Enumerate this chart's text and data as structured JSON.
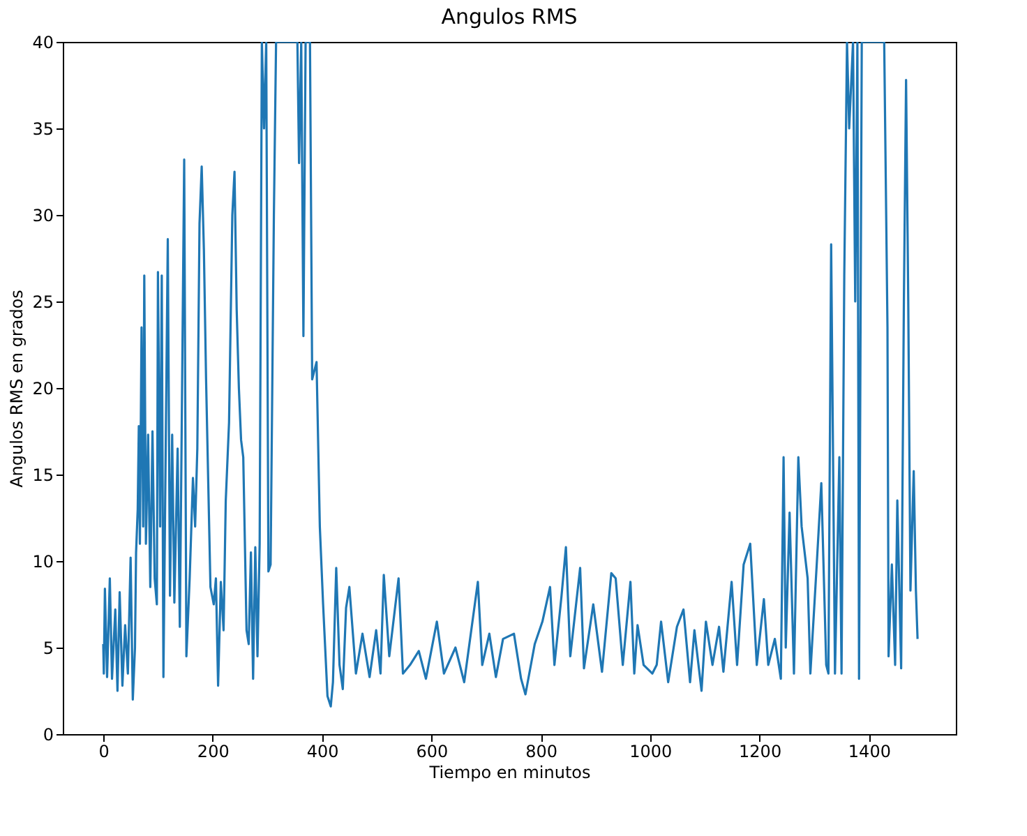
{
  "chart_data": {
    "type": "line",
    "title": "Angulos RMS",
    "xlabel": "Tiempo en minutos",
    "ylabel": "Angulos RMS en grados",
    "xlim": [
      -74,
      1559
    ],
    "ylim": [
      0,
      40
    ],
    "xticks": [
      0,
      200,
      400,
      600,
      800,
      1000,
      1200,
      1400
    ],
    "yticks": [
      0,
      5,
      10,
      15,
      20,
      25,
      30,
      35,
      40
    ],
    "grid": false,
    "line_style": "solid",
    "marker": "none",
    "series": [
      {
        "color": "#1f77b4",
        "x": [
          0,
          1,
          3,
          7,
          12,
          16,
          22,
          26,
          30,
          35,
          40,
          45,
          50,
          54,
          58,
          60,
          63,
          65,
          67,
          70,
          73,
          75,
          78,
          82,
          86,
          90,
          94,
          98,
          100,
          104,
          107,
          110,
          118,
          122,
          126,
          130,
          136,
          140,
          144,
          148,
          152,
          158,
          164,
          168,
          172,
          176,
          180,
          184,
          188,
          196,
          202,
          206,
          210,
          215,
          220,
          224,
          230,
          236,
          240,
          244,
          248,
          252,
          256,
          262,
          266,
          270,
          274,
          278,
          282,
          286,
          290,
          294,
          298,
          302,
          306,
          312,
          316,
          355,
          358,
          362,
          366,
          370,
          378,
          382,
          390,
          396,
          402,
          410,
          416,
          420,
          426,
          432,
          438,
          444,
          450,
          462,
          474,
          487,
          499,
          507,
          513,
          523,
          540,
          548,
          561,
          577,
          590,
          610,
          623,
          644,
          660,
          685,
          693,
          706,
          718,
          731,
          751,
          764,
          772,
          789,
          803,
          817,
          825,
          838,
          846,
          854,
          872,
          879,
          896,
          912,
          929,
          937,
          950,
          964,
          971,
          977,
          988,
          1004,
          1012,
          1020,
          1033,
          1049,
          1061,
          1073,
          1081,
          1094,
          1102,
          1114,
          1126,
          1134,
          1149,
          1159,
          1171,
          1183,
          1195,
          1208,
          1216,
          1228,
          1239,
          1244,
          1248,
          1255,
          1263,
          1271,
          1277,
          1288,
          1293,
          1305,
          1313,
          1322,
          1326,
          1331,
          1338,
          1346,
          1350,
          1355,
          1360,
          1364,
          1371,
          1375,
          1379,
          1382,
          1387,
          1428,
          1434,
          1436,
          1442,
          1448,
          1452,
          1459,
          1464,
          1468,
          1472,
          1476,
          1482,
          1486,
          1489
        ],
        "values": [
          5.2,
          3.5,
          8.4,
          3.3,
          9.0,
          3.2,
          7.2,
          2.5,
          8.2,
          2.8,
          6.3,
          3.5,
          10.2,
          2.0,
          5.0,
          10.5,
          13,
          17.8,
          11,
          23.5,
          12,
          26.5,
          11,
          17.3,
          8.5,
          17.5,
          9,
          7.5,
          26.7,
          12,
          26.5,
          3.3,
          28.6,
          8,
          17.3,
          7.6,
          16.5,
          6.2,
          19.5,
          33.2,
          4.5,
          9,
          14.8,
          12,
          16.5,
          29.5,
          32.8,
          28,
          20.5,
          8.5,
          7.5,
          9,
          2.8,
          8.8,
          6,
          13.5,
          18,
          30,
          32.5,
          24.5,
          20,
          17,
          16,
          6,
          5.2,
          10.5,
          3.2,
          10.8,
          4.5,
          11,
          40,
          35,
          40,
          9.4,
          9.8,
          30,
          40,
          40,
          33,
          40,
          23,
          40,
          40,
          20.5,
          21.5,
          12,
          7.5,
          2.2,
          1.6,
          3,
          9.6,
          4,
          2.6,
          7.3,
          8.5,
          3.5,
          5.8,
          3.3,
          6,
          3.5,
          9.2,
          4.5,
          9,
          3.5,
          4,
          4.8,
          3.2,
          6.5,
          3.5,
          5,
          3,
          8.8,
          4,
          5.8,
          3.3,
          5.5,
          5.8,
          3.2,
          2.3,
          5.2,
          6.5,
          8.5,
          4,
          8,
          10.8,
          4.5,
          9.6,
          3.8,
          7.5,
          3.6,
          9.3,
          9,
          4,
          8.8,
          3.5,
          6.3,
          4,
          3.5,
          4,
          6.5,
          3,
          6.2,
          7.2,
          3,
          6,
          2.5,
          6.5,
          4,
          6.2,
          3.6,
          8.8,
          4,
          9.8,
          11,
          4,
          7.8,
          4,
          5.5,
          3.2,
          16,
          5,
          12.8,
          3.5,
          16,
          12,
          9,
          3.5,
          10,
          14.5,
          4,
          3.5,
          28.3,
          3.5,
          16,
          3.5,
          26.5,
          40,
          35,
          40,
          25,
          40,
          3.2,
          40,
          40,
          23.5,
          4.5,
          9.8,
          4,
          13.5,
          3.8,
          25,
          37.8,
          25,
          8.3,
          15.2,
          8.3,
          5.5
        ]
      }
    ]
  }
}
